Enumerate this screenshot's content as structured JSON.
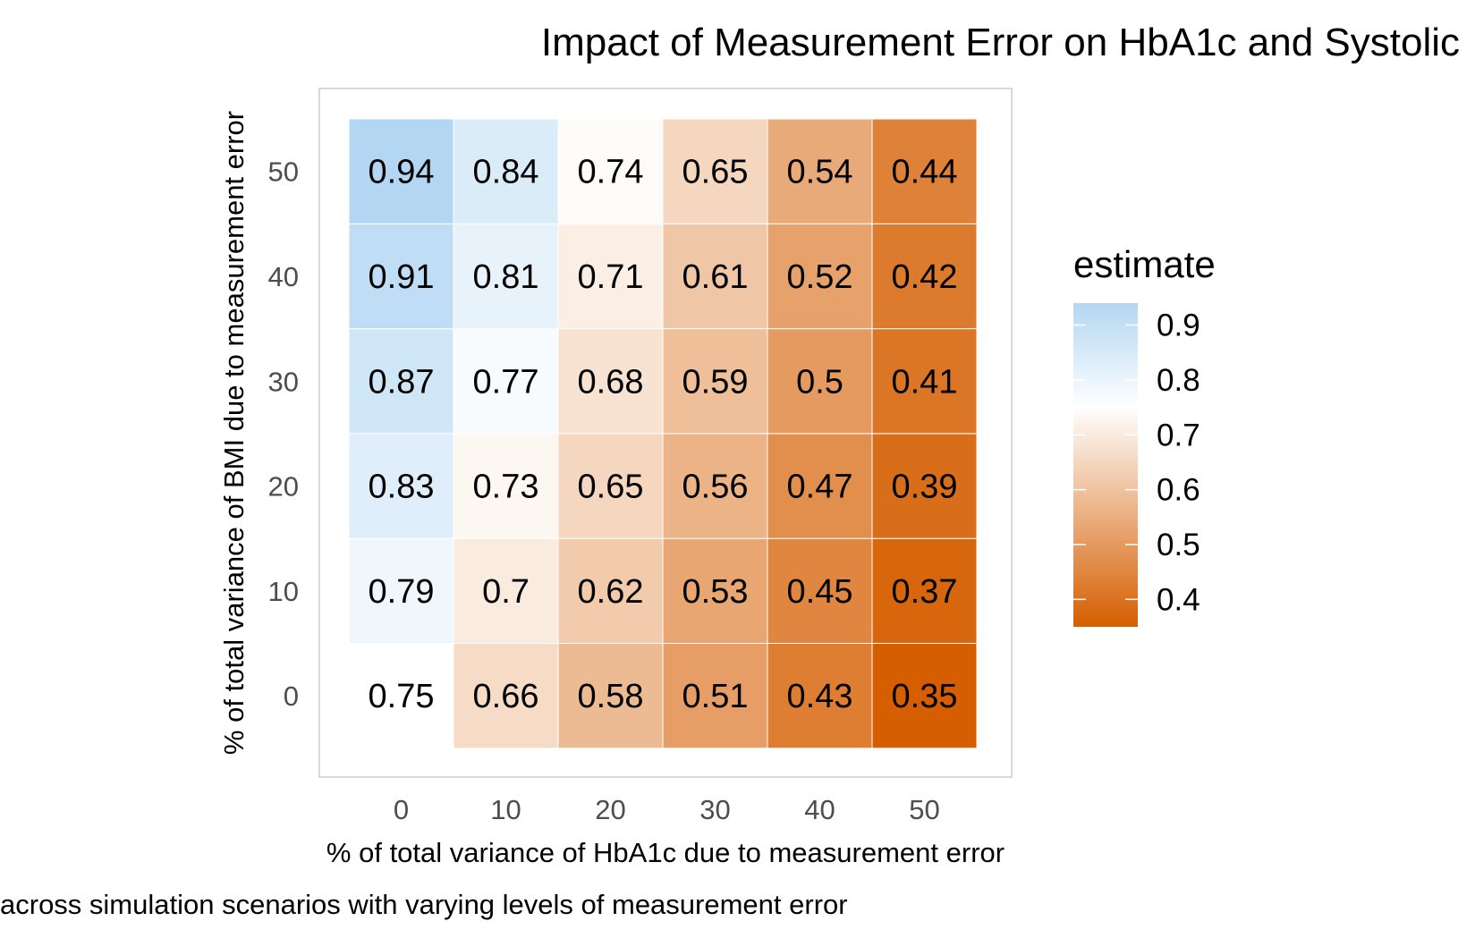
{
  "chart_data": {
    "type": "heatmap",
    "title": "Impact of Measurement Error on HbA1c and Systolic",
    "caption": "across simulation scenarios with varying levels of measurement error",
    "xlabel": "% of total variance of HbA1c due to measurement error",
    "ylabel": "% of total variance of BMI due to measurement error",
    "x": [
      "0",
      "10",
      "20",
      "30",
      "40",
      "50"
    ],
    "y": [
      "0",
      "10",
      "20",
      "30",
      "40",
      "50"
    ],
    "values": [
      [
        "0.75",
        "0.66",
        "0.58",
        "0.51",
        "0.43",
        "0.35"
      ],
      [
        "0.79",
        "0.7",
        "0.62",
        "0.53",
        "0.45",
        "0.37"
      ],
      [
        "0.83",
        "0.73",
        "0.65",
        "0.56",
        "0.47",
        "0.39"
      ],
      [
        "0.87",
        "0.77",
        "0.68",
        "0.59",
        "0.5",
        "0.41"
      ],
      [
        "0.91",
        "0.81",
        "0.71",
        "0.61",
        "0.52",
        "0.42"
      ],
      [
        "0.94",
        "0.84",
        "0.74",
        "0.65",
        "0.54",
        "0.44"
      ]
    ],
    "legend": {
      "title": "estimate",
      "placement": "right",
      "ticks": [
        "0.9",
        "0.8",
        "0.7",
        "0.6",
        "0.5",
        "0.4"
      ],
      "range": [
        0.35,
        0.94
      ],
      "midpoint": 0.75
    },
    "colors": {
      "low": "#d55e00",
      "mid": "#ffffff",
      "high": "#b3d7f2",
      "panel_border": "#cccccc",
      "tick_text": "#4d4d4d"
    },
    "grid": false
  }
}
